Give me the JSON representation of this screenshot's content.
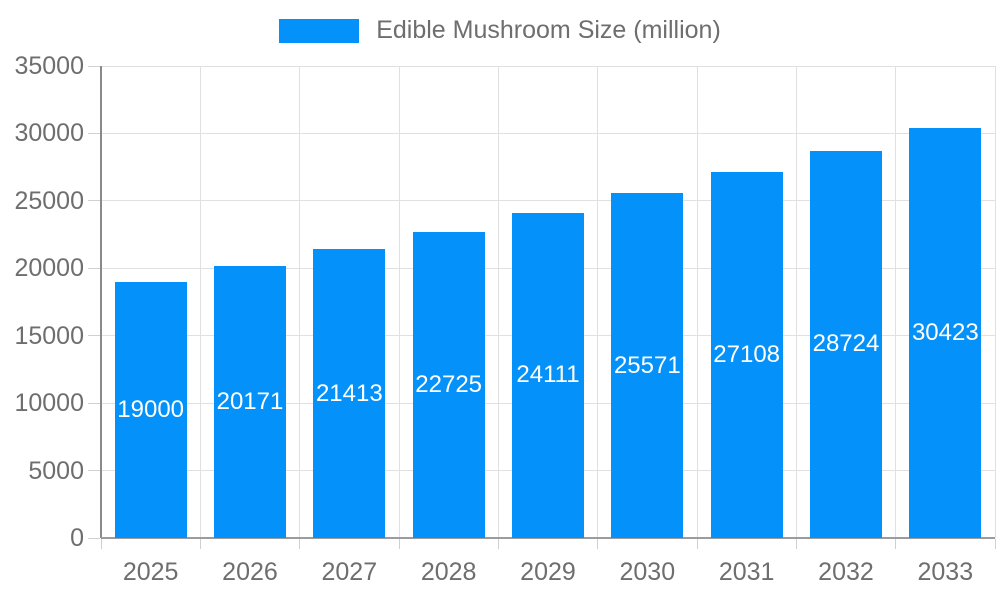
{
  "legend": {
    "label": "Edible Mushroom Size (million)"
  },
  "chart_data": {
    "type": "bar",
    "title": "Edible Mushroom Size (million)",
    "categories": [
      "2025",
      "2026",
      "2027",
      "2028",
      "2029",
      "2030",
      "2031",
      "2032",
      "2033"
    ],
    "series": [
      {
        "name": "Edible Mushroom Size (million)",
        "values": [
          19000,
          20171,
          21413,
          22725,
          24111,
          25571,
          27108,
          28724,
          30423
        ]
      }
    ],
    "y_ticks": [
      0,
      5000,
      10000,
      15000,
      20000,
      25000,
      30000,
      35000
    ],
    "ylim": [
      0,
      35000
    ],
    "xlabel": "",
    "ylabel": "",
    "grid": true,
    "legend_position": "top-center",
    "data_labels_position": "inside-center",
    "colors": {
      "bar": "#0591fa",
      "grid_line": "#e0e0e0",
      "axis_line": "#8a8a8a",
      "tick_mark": "#d0d0d0",
      "axis_text": "#6e6e6e",
      "data_label_text": "#ffffff",
      "background": "#ffffff"
    }
  }
}
